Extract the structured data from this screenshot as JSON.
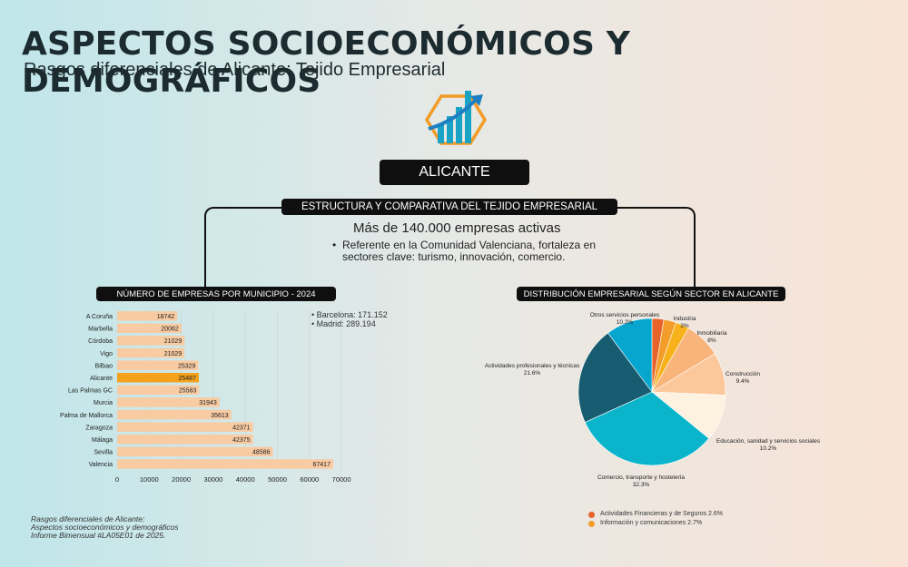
{
  "header": {
    "title": "ASPECTOS SOCIOECONÓMICOS Y DEMOGRÁFICOS",
    "subtitle": "Rasgos diferenciales de Alicante: Tejido Empresarial"
  },
  "logo": {
    "icon": "growth-chart-hexagon-icon",
    "colors": {
      "hexagon": "#f29b26",
      "bars": "#1aa3c4",
      "arrow": "#1c7fc2"
    }
  },
  "main_box": {
    "label": "ALICANTE"
  },
  "structure": {
    "label": "ESTRUCTURA Y COMPARATIVA DEL TEJIDO EMPRESARIAL",
    "headline": "Más de 140.000 empresas activas",
    "bullet": "Referente en la Comunidad Valenciana, fortaleza en sectores clave: turismo, innovación, comercio.",
    "bullet_symbol": "•"
  },
  "municipal": {
    "label": "NÚMERO DE EMPRESAS POR MUNICIPIO - 2024",
    "notes": [
      "• Barcelona: 171.152",
      "• Madrid: 289.194"
    ]
  },
  "sector": {
    "label": "DISTRIBUCIÓN EMPRESARIAL SEGÚN SECTOR EN ALICANTE"
  },
  "legend": [
    {
      "label": "Actividades Financieras y de Seguros 2.6%",
      "color": "#e8632a"
    },
    {
      "label": "Información y comunicaciones 2.7%",
      "color": "#f39d2a"
    }
  ],
  "footer": [
    "Rasgos diferenciales de Alicante:",
    "Aspectos socioeconómicos y demográficos",
    "Informe Bimensual #LA05E01 de 2025."
  ],
  "colors": {
    "bar": "#f8cba3",
    "bar_highlight": "#f4a21b",
    "box": "#0f0f0f"
  },
  "chart_data": [
    {
      "type": "bar",
      "orientation": "horizontal",
      "categories": [
        "A Coruña",
        "Marbella",
        "Córdoba",
        "Vigo",
        "Bilbao",
        "Alicante",
        "Las Palmas GC",
        "Murcia",
        "Palma de Mallorca",
        "Zaragoza",
        "Málaga",
        "Sevilla",
        "Valencia"
      ],
      "values": [
        18742,
        20062,
        21029,
        21029,
        25329,
        25487,
        25583,
        31943,
        35613,
        42371,
        42375,
        48586,
        67417
      ],
      "highlight": "Alicante",
      "xlim": [
        0,
        70000
      ],
      "xticks": [
        "0",
        "10000",
        "20000",
        "30000",
        "40000",
        "50000",
        "60000",
        "70000"
      ],
      "grid": "vertical"
    },
    {
      "type": "pie",
      "slices": [
        {
          "label": "Actividades Financieras y de Seguros",
          "pct_text": "",
          "value": 2.6,
          "color": "#e8632a"
        },
        {
          "label": "Información y comunicaciones",
          "pct_text": "",
          "value": 2.7,
          "color": "#f39d2a"
        },
        {
          "label": "Industria",
          "pct_text": "3%",
          "value": 3,
          "color": "#f7b21b"
        },
        {
          "label": "Inmobiliaria",
          "pct_text": "8%",
          "value": 8,
          "color": "#f8b47a"
        },
        {
          "label": "Construcción",
          "pct_text": "9.4%",
          "value": 9.4,
          "color": "#fcc79b"
        },
        {
          "label": "Educación, sanidad y servicios sociales",
          "pct_text": "10.2%",
          "value": 10.2,
          "color": "#fdf1df"
        },
        {
          "label": "Comercio, transporte y hostelería",
          "pct_text": "32.3%",
          "value": 32.3,
          "color": "#0ab4cb"
        },
        {
          "label": "Actividades profesionales y técnicas",
          "pct_text": "21.6%",
          "value": 21.6,
          "color": "#175c70"
        },
        {
          "label": "Otros servicios personales",
          "pct_text": "10.2%",
          "value": 10.2,
          "color": "#06a6cf"
        }
      ]
    }
  ]
}
